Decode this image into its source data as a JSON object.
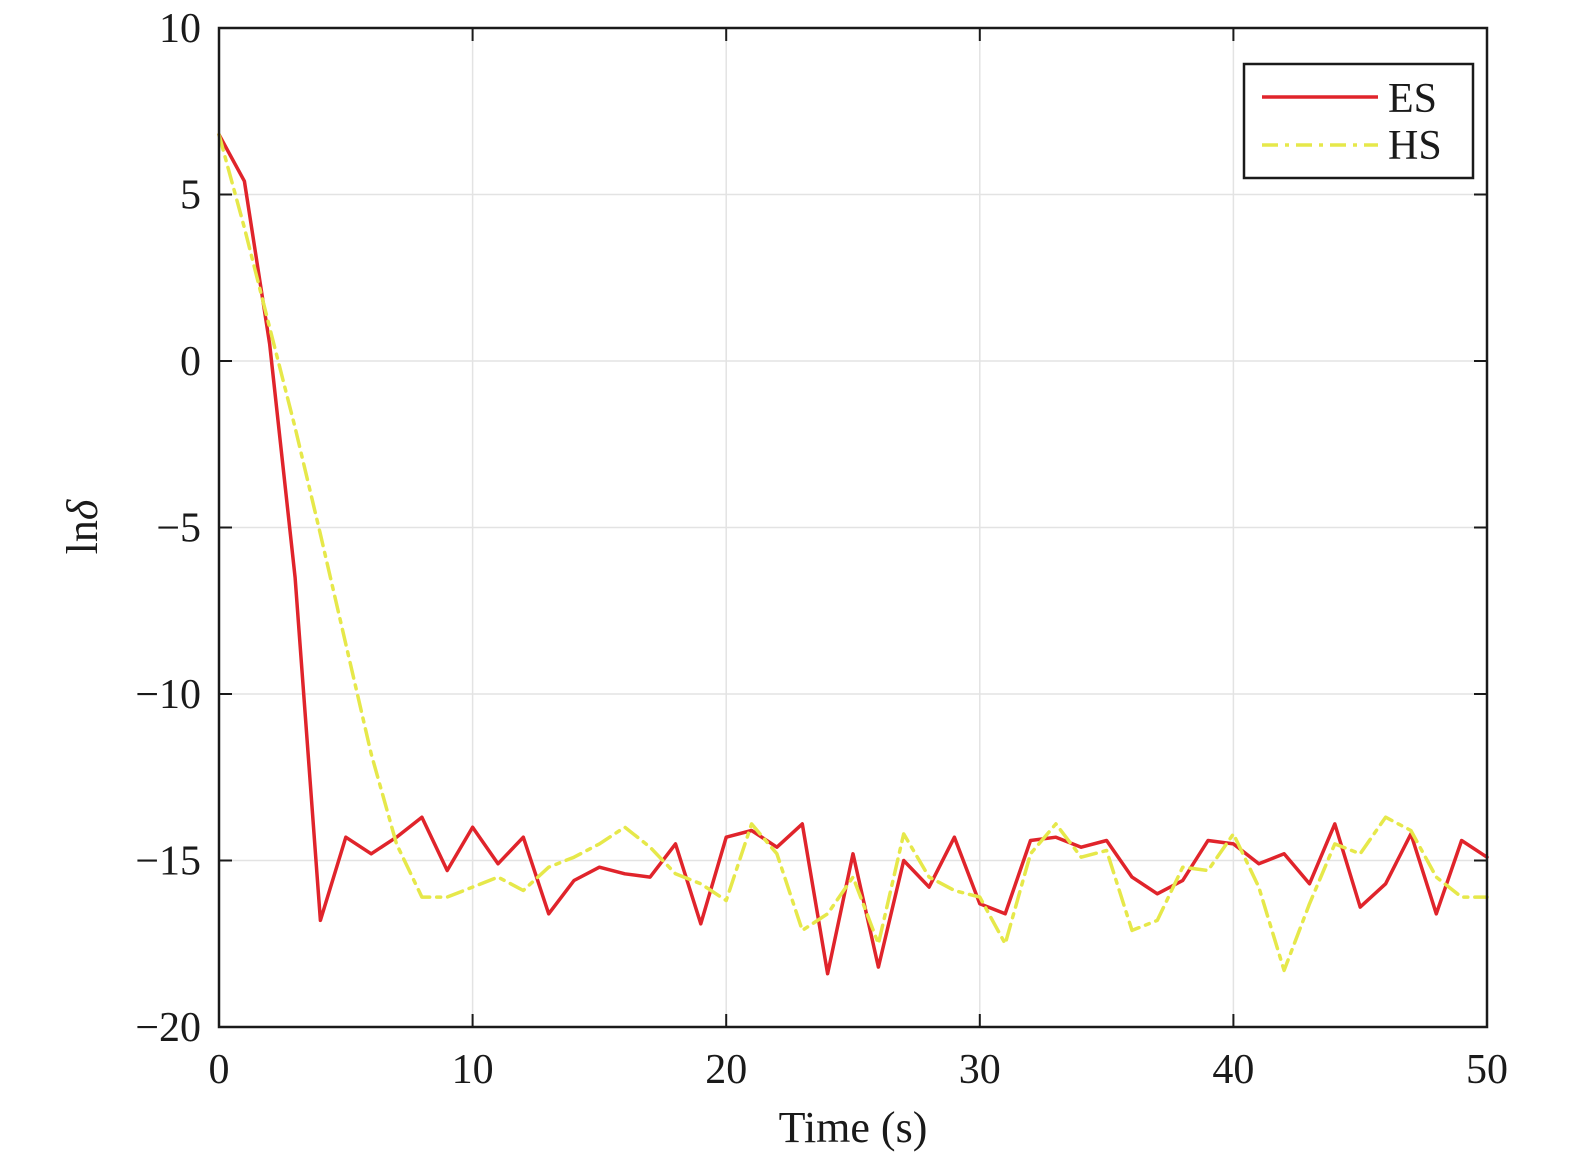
{
  "chart_data": {
    "type": "line",
    "xlabel": "Time (s)",
    "ylabel_prefix": "ln",
    "ylabel_symbol": "δ",
    "xlim": [
      0,
      50
    ],
    "ylim": [
      -20,
      10
    ],
    "xticks": [
      0,
      10,
      20,
      30,
      40,
      50
    ],
    "yticks": [
      -20,
      -15,
      -10,
      -5,
      0,
      5,
      10
    ],
    "xtick_labels": [
      "0",
      "10",
      "20",
      "30",
      "40",
      "50"
    ],
    "ytick_labels": [
      "−20",
      "−15",
      "−10",
      "−5",
      "0",
      "5",
      "10"
    ],
    "grid": true,
    "legend_position": "top-right",
    "x": [
      0,
      1,
      2,
      3,
      4,
      5,
      6,
      7,
      8,
      9,
      10,
      11,
      12,
      13,
      14,
      15,
      16,
      17,
      18,
      19,
      20,
      21,
      22,
      23,
      24,
      25,
      26,
      27,
      28,
      29,
      30,
      31,
      32,
      33,
      34,
      35,
      36,
      37,
      38,
      39,
      40,
      41,
      42,
      43,
      44,
      45,
      46,
      47,
      48,
      49,
      50
    ],
    "series": [
      {
        "name": "ES",
        "color": "#e0242b",
        "style": "solid",
        "values": [
          6.8,
          5.4,
          0.5,
          -6.5,
          -16.8,
          -14.3,
          -14.8,
          -14.3,
          -13.7,
          -15.3,
          -14.0,
          -15.1,
          -14.3,
          -16.6,
          -15.6,
          -15.2,
          -15.4,
          -15.5,
          -14.5,
          -16.9,
          -14.3,
          -14.1,
          -14.6,
          -13.9,
          -18.4,
          -14.8,
          -18.2,
          -15.0,
          -15.8,
          -14.3,
          -16.3,
          -16.6,
          -14.4,
          -14.3,
          -14.6,
          -14.4,
          -15.5,
          -16.0,
          -15.6,
          -14.4,
          -14.5,
          -15.1,
          -14.8,
          -15.7,
          -13.9,
          -16.4,
          -15.7,
          -14.2,
          -16.6,
          -14.4,
          -14.9
        ]
      },
      {
        "name": "HS",
        "color": "#e6e84a",
        "style": "dashdot",
        "values": [
          6.8,
          4.0,
          1.0,
          -2.0,
          -5.2,
          -8.5,
          -11.8,
          -14.5,
          -16.1,
          -16.1,
          -15.8,
          -15.5,
          -15.9,
          -15.2,
          -14.9,
          -14.5,
          -14.0,
          -14.6,
          -15.4,
          -15.7,
          -16.2,
          -13.9,
          -14.8,
          -17.1,
          -16.6,
          -15.5,
          -17.5,
          -14.2,
          -15.5,
          -15.9,
          -16.1,
          -17.5,
          -14.8,
          -13.9,
          -14.9,
          -14.7,
          -17.1,
          -16.8,
          -15.2,
          -15.3,
          -14.2,
          -15.8,
          -18.3,
          -16.3,
          -14.5,
          -14.8,
          -13.7,
          -14.1,
          -15.5,
          -16.1,
          -16.1
        ]
      }
    ]
  }
}
